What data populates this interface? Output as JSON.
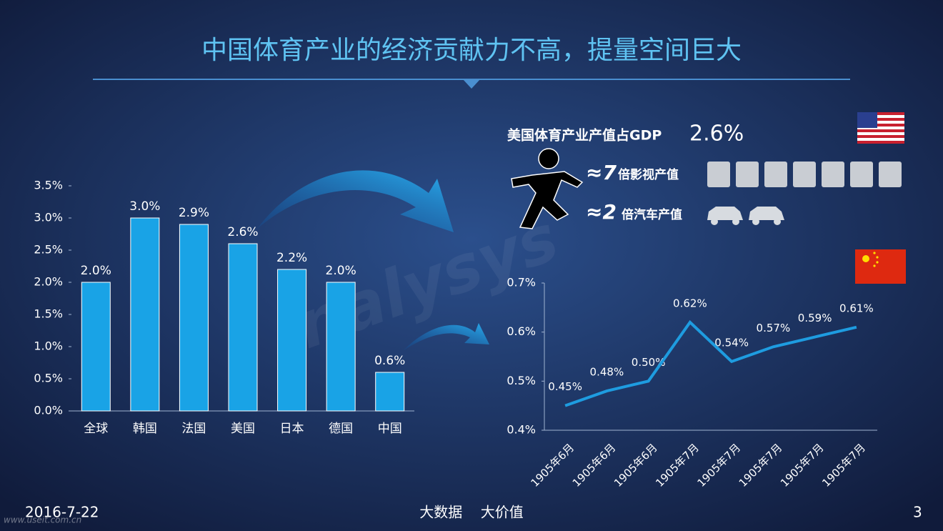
{
  "title": "中国体育产业的经济贡献力不高，提量空间巨大",
  "chart_data": [
    {
      "type": "bar",
      "categories": [
        "全球",
        "韩国",
        "法国",
        "美国",
        "日本",
        "德国",
        "中国"
      ],
      "values": [
        2.0,
        3.0,
        2.9,
        2.6,
        2.2,
        2.0,
        0.6
      ],
      "value_labels": [
        "2.0%",
        "3.0%",
        "2.9%",
        "2.6%",
        "2.2%",
        "2.0%",
        "0.6%"
      ],
      "color": "#19a3e6",
      "ylim": [
        0,
        3.5
      ],
      "yticks": [
        {
          "value": 0,
          "label": "0.0%"
        },
        {
          "value": 0.5,
          "label": "0.5%"
        },
        {
          "value": 1.0,
          "label": "1.0%"
        },
        {
          "value": 1.5,
          "label": "1.5%"
        },
        {
          "value": 2.0,
          "label": "2.0%"
        },
        {
          "value": 2.5,
          "label": "2.5%"
        },
        {
          "value": 3.0,
          "label": "3.0%"
        },
        {
          "value": 3.5,
          "label": "3.5%"
        }
      ]
    },
    {
      "type": "line",
      "categories": [
        "1905年6月",
        "1905年6月",
        "1905年6月",
        "1905年7月",
        "1905年7月",
        "1905年7月",
        "1905年7月",
        "1905年7月"
      ],
      "values": [
        0.45,
        0.48,
        0.5,
        0.62,
        0.54,
        0.57,
        0.59,
        0.61
      ],
      "value_labels": [
        "0.45%",
        "0.48%",
        "0.50%",
        "0.62%",
        "0.54%",
        "0.57%",
        "0.59%",
        "0.61%"
      ],
      "color": "#1e9ce0",
      "ylim": [
        0.4,
        0.7
      ],
      "yticks": [
        {
          "value": 0.4,
          "label": "0.4%"
        },
        {
          "value": 0.5,
          "label": "0.5%"
        },
        {
          "value": 0.6,
          "label": "0.6%"
        },
        {
          "value": 0.7,
          "label": "0.7%"
        }
      ]
    }
  ],
  "usa": {
    "text": "美国体育产业产值占GDP",
    "share": "2.6%",
    "film_multiple": "≈7",
    "film_text": "倍影视产值",
    "car_multiple": "≈2",
    "car_text": "倍汽车产值"
  },
  "watermark": "nalysys",
  "footer": {
    "date": "2016-7-22",
    "slogan": "大数据    大价值",
    "page": "3",
    "site": "www.useit.com.cn"
  }
}
